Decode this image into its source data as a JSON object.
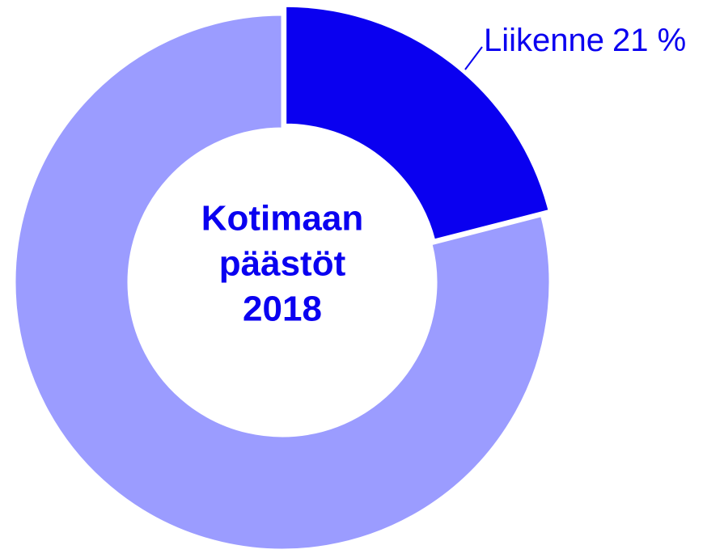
{
  "chart_data": {
    "type": "donut",
    "title": [
      "Kotimaan",
      "päästöt",
      "2018"
    ],
    "categories": [
      "Liikenne",
      null
    ],
    "values": [
      21,
      79
    ],
    "value_labels": [
      "21 %",
      null
    ],
    "colors": [
      "#0a00f0",
      "#9b9cff"
    ]
  }
}
